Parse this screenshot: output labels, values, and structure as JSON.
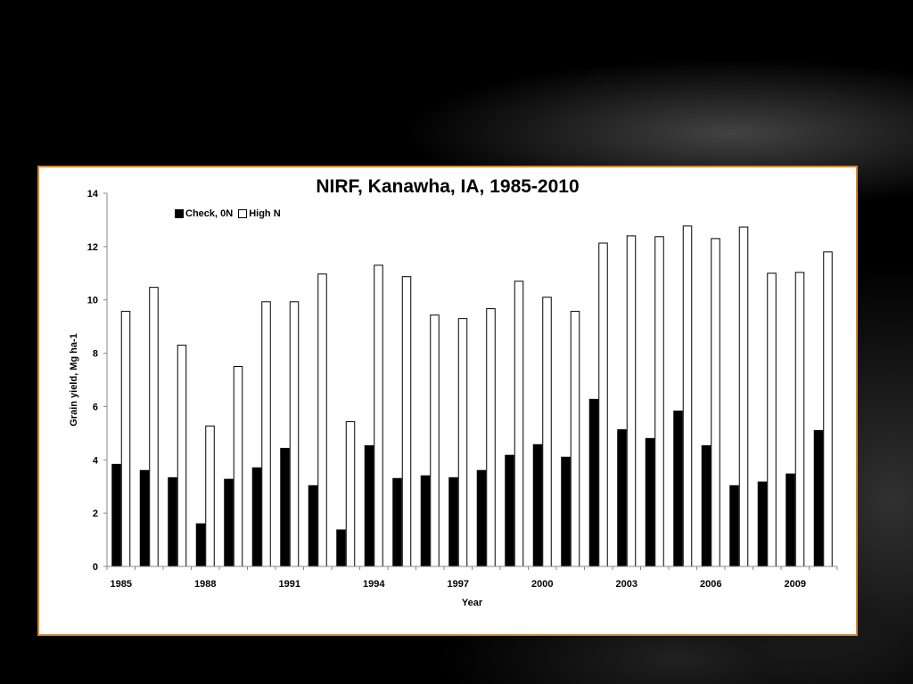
{
  "chart_data": {
    "type": "bar",
    "title": "NIRF, Kanawha, IA, 1985-2010",
    "xlabel": "Year",
    "ylabel": "Grain yield, Mg ha-1",
    "ylim": [
      0,
      14
    ],
    "yticks": [
      0,
      2,
      4,
      6,
      8,
      10,
      12,
      14
    ],
    "categories": [
      1985,
      1986,
      1987,
      1988,
      1989,
      1990,
      1991,
      1992,
      1993,
      1994,
      1995,
      1996,
      1997,
      1998,
      1999,
      2000,
      2001,
      2002,
      2003,
      2004,
      2005,
      2006,
      2007,
      2008,
      2009,
      2010
    ],
    "xtick_labels": [
      "1985",
      "1988",
      "1991",
      "1994",
      "1997",
      "2000",
      "2003",
      "2006",
      "2009"
    ],
    "legend_position": "top-left",
    "series": [
      {
        "name": "Check, 0N",
        "color": "#000000",
        "values": [
          3.83,
          3.6,
          3.33,
          1.6,
          3.27,
          3.7,
          4.43,
          3.03,
          1.37,
          4.53,
          3.3,
          3.4,
          3.33,
          3.6,
          4.17,
          4.57,
          4.1,
          6.27,
          5.13,
          4.8,
          5.83,
          4.53,
          3.03,
          3.17,
          3.47,
          5.1
        ]
      },
      {
        "name": "High N",
        "color": "#ffffff",
        "values": [
          9.57,
          10.47,
          8.3,
          5.27,
          7.5,
          9.93,
          9.93,
          10.97,
          5.43,
          11.3,
          10.87,
          9.43,
          9.3,
          9.67,
          10.7,
          10.1,
          9.57,
          12.13,
          12.4,
          12.37,
          12.77,
          12.3,
          12.73,
          11.0,
          11.03,
          11.8
        ]
      }
    ]
  }
}
